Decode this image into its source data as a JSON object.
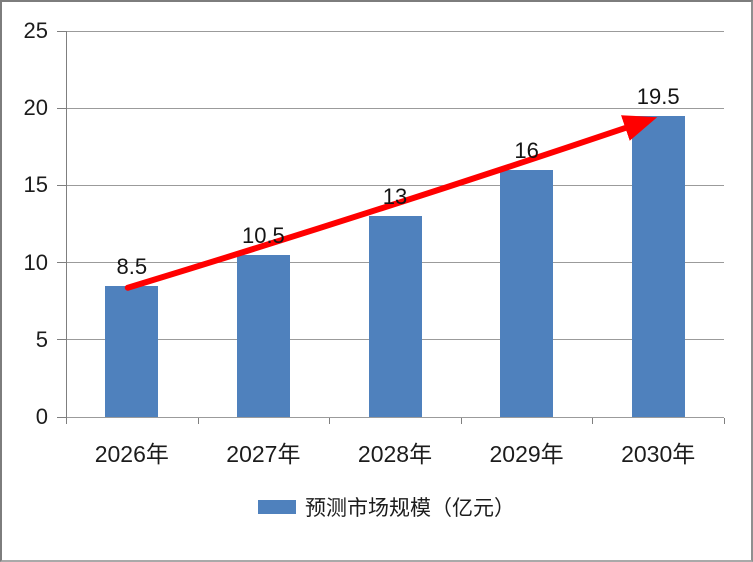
{
  "chart_data": {
    "type": "bar",
    "title": "",
    "xlabel": "",
    "ylabel": "",
    "categories": [
      "2026年",
      "2027年",
      "2028年",
      "2029年",
      "2030年"
    ],
    "values": [
      8.5,
      10.5,
      13,
      16,
      19.5
    ],
    "value_labels": [
      "8.5",
      "10.5",
      "13",
      "16",
      "19.5"
    ],
    "series": [
      {
        "name": "预测市场规模（亿元）",
        "values": [
          8.5,
          10.5,
          13,
          16,
          19.5
        ]
      }
    ],
    "ylim": [
      0,
      25
    ],
    "ytick_labels_top_to_bottom": [
      "25",
      "20",
      "15",
      "10",
      "5",
      "0"
    ],
    "grid": true,
    "legend_position": "bottom",
    "legend_label": "预测市场规模（亿元）",
    "bar_color": "#4F81BD",
    "trend_arrow_color": "#FF0000",
    "annotations": [
      "red upward trend arrow from 2026 bar top to 2030 bar top"
    ]
  }
}
